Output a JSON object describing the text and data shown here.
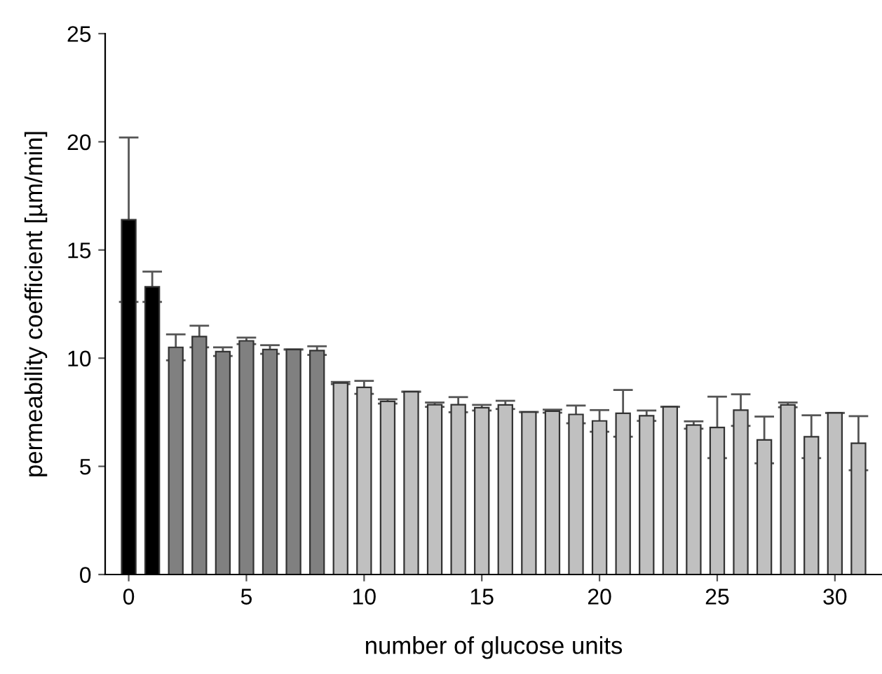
{
  "chart_data": {
    "type": "bar",
    "xlabel": "number of glucose units",
    "ylabel": "permeability coefficient [µm/min]",
    "x": [
      0,
      1,
      2,
      3,
      4,
      5,
      6,
      7,
      8,
      9,
      10,
      11,
      12,
      13,
      14,
      15,
      16,
      17,
      18,
      19,
      20,
      21,
      22,
      23,
      24,
      25,
      26,
      27,
      28,
      29,
      30,
      31
    ],
    "values": [
      16.4,
      13.3,
      10.5,
      11.0,
      10.3,
      10.8,
      10.4,
      10.4,
      10.35,
      8.85,
      8.65,
      8.0,
      8.45,
      7.85,
      7.85,
      7.71,
      7.84,
      7.51,
      7.55,
      7.4,
      7.1,
      7.45,
      7.34,
      7.75,
      6.91,
      6.8,
      7.6,
      6.22,
      7.84,
      6.37,
      7.47,
      6.07
    ],
    "errors": [
      3.8,
      0.7,
      0.6,
      0.5,
      0.2,
      0.15,
      0.2,
      null,
      0.2,
      0.05,
      0.3,
      0.1,
      null,
      0.1,
      0.35,
      0.13,
      0.19,
      null,
      0.07,
      0.41,
      0.5,
      1.08,
      0.24,
      null,
      0.17,
      1.42,
      0.73,
      1.08,
      0.11,
      0.99,
      null,
      1.25
    ],
    "colors": [
      "#000000",
      "#000000",
      "#808080",
      "#808080",
      "#808080",
      "#808080",
      "#808080",
      "#808080",
      "#808080",
      "#c0c0c0",
      "#c0c0c0",
      "#c0c0c0",
      "#c0c0c0",
      "#c0c0c0",
      "#c0c0c0",
      "#c0c0c0",
      "#c0c0c0",
      "#c0c0c0",
      "#c0c0c0",
      "#c0c0c0",
      "#c0c0c0",
      "#c0c0c0",
      "#c0c0c0",
      "#c0c0c0",
      "#c0c0c0",
      "#c0c0c0",
      "#c0c0c0",
      "#c0c0c0",
      "#c0c0c0",
      "#c0c0c0",
      "#c0c0c0",
      "#c0c0c0"
    ],
    "xlim": [
      -1,
      32
    ],
    "xticks": [
      0,
      5,
      10,
      15,
      20,
      25,
      30
    ],
    "ylim": [
      0,
      25
    ],
    "yticks": [
      0,
      5,
      10,
      15,
      20,
      25
    ],
    "grid": false
  }
}
